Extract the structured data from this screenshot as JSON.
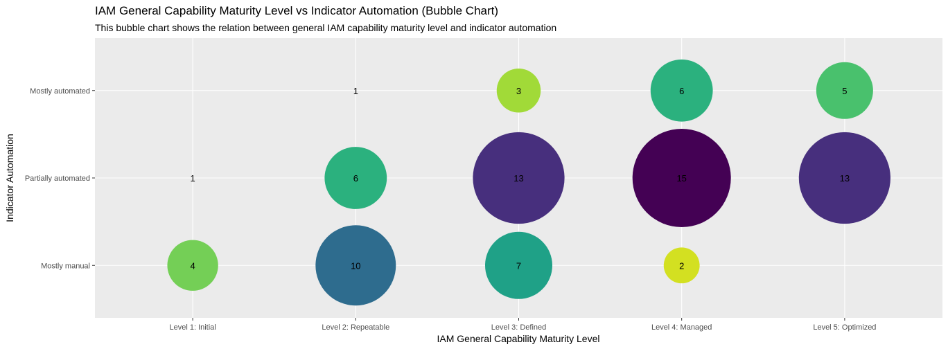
{
  "chart_data": {
    "type": "scatter",
    "subtype": "bubble",
    "title": "IAM General Capability Maturity Level vs Indicator Automation (Bubble Chart)",
    "subtitle": "This bubble chart shows the relation between general IAM capability maturity level and indicator automation",
    "xlabel": "IAM General Capability Maturity Level",
    "ylabel": "Indicator Automation",
    "x_categories": [
      "Level 1: Initial",
      "Level 2: Repeatable",
      "Level 3: Defined",
      "Level 4: Managed",
      "Level 5: Optimized"
    ],
    "y_categories": [
      "Mostly manual",
      "Partially automated",
      "Mostly automated"
    ],
    "grid": true,
    "legend": "none",
    "points": [
      {
        "x": "Level 1: Initial",
        "y": "Mostly manual",
        "count": 4,
        "color": "#74CF56"
      },
      {
        "x": "Level 1: Initial",
        "y": "Partially automated",
        "count": 1,
        "color": "#FDE725"
      },
      {
        "x": "Level 2: Repeatable",
        "y": "Mostly manual",
        "count": 10,
        "color": "#2E6C8E"
      },
      {
        "x": "Level 2: Repeatable",
        "y": "Partially automated",
        "count": 6,
        "color": "#2BB17E"
      },
      {
        "x": "Level 2: Repeatable",
        "y": "Mostly automated",
        "count": 1,
        "color": "#FDE725"
      },
      {
        "x": "Level 3: Defined",
        "y": "Mostly manual",
        "count": 7,
        "color": "#1FA187"
      },
      {
        "x": "Level 3: Defined",
        "y": "Partially automated",
        "count": 13,
        "color": "#472F7D"
      },
      {
        "x": "Level 3: Defined",
        "y": "Mostly automated",
        "count": 3,
        "color": "#A1DA38"
      },
      {
        "x": "Level 4: Managed",
        "y": "Mostly manual",
        "count": 2,
        "color": "#D3E021"
      },
      {
        "x": "Level 4: Managed",
        "y": "Partially automated",
        "count": 15,
        "color": "#440154"
      },
      {
        "x": "Level 4: Managed",
        "y": "Mostly automated",
        "count": 6,
        "color": "#2BB17E"
      },
      {
        "x": "Level 5: Optimized",
        "y": "Partially automated",
        "count": 13,
        "color": "#472F7D"
      },
      {
        "x": "Level 5: Optimized",
        "y": "Mostly automated",
        "count": 5,
        "color": "#49C16D"
      }
    ],
    "colors": {
      "panel_background": "#EBEBEB",
      "grid_line": "#FFFFFF"
    }
  }
}
